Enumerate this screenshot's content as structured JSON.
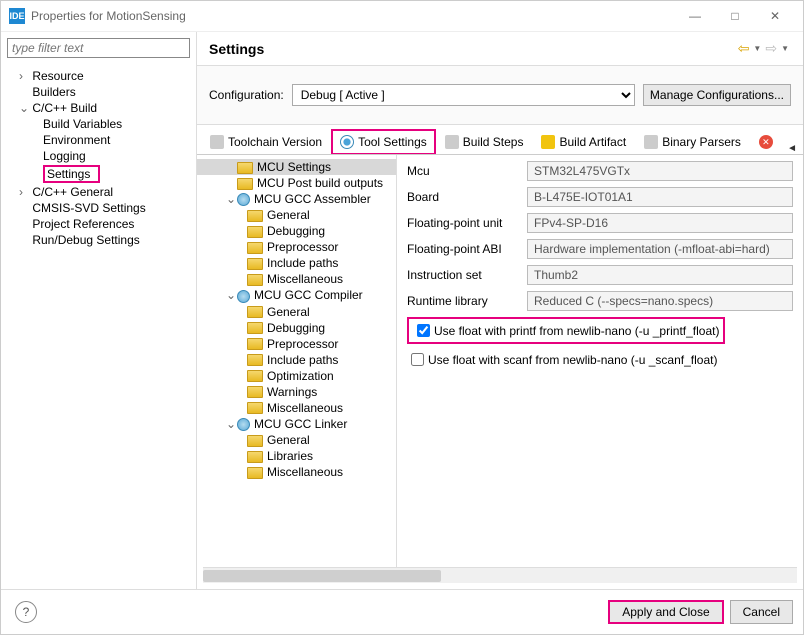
{
  "window": {
    "title": "Properties for MotionSensing",
    "ide_badge": "IDE"
  },
  "filter": {
    "placeholder": "type filter text"
  },
  "nav": {
    "resource": "Resource",
    "builders": "Builders",
    "ccbuild": "C/C++ Build",
    "buildvars": "Build Variables",
    "environment": "Environment",
    "logging": "Logging",
    "settings": "Settings",
    "ccgeneral": "C/C++ General",
    "cmsis": "CMSIS-SVD Settings",
    "projref": "Project References",
    "rundebug": "Run/Debug Settings"
  },
  "header": {
    "title": "Settings"
  },
  "config": {
    "label": "Configuration:",
    "value": "Debug  [ Active ]",
    "manage": "Manage Configurations..."
  },
  "tabs": {
    "toolchain": "Toolchain Version",
    "toolsettings": "Tool Settings",
    "buildsteps": "Build Steps",
    "buildartifact": "Build Artifact",
    "binaryparsers": "Binary Parsers"
  },
  "tooltree": {
    "mcusettings": "MCU Settings",
    "mcupost": "MCU Post build outputs",
    "assembler": "MCU GCC Assembler",
    "compiler": "MCU GCC Compiler",
    "linker": "MCU GCC Linker",
    "general": "General",
    "debugging": "Debugging",
    "preprocessor": "Preprocessor",
    "includepaths": "Include paths",
    "misc": "Miscellaneous",
    "optimization": "Optimization",
    "warnings": "Warnings",
    "libraries": "Libraries"
  },
  "form": {
    "labels": {
      "mcu": "Mcu",
      "board": "Board",
      "fpu": "Floating-point unit",
      "fpabi": "Floating-point ABI",
      "iset": "Instruction set",
      "rtlib": "Runtime library"
    },
    "values": {
      "mcu": "STM32L475VGTx",
      "board": "B-L475E-IOT01A1",
      "fpu": "FPv4-SP-D16",
      "fpabi": "Hardware implementation (-mfloat-abi=hard)",
      "iset": "Thumb2",
      "rtlib": "Reduced C (--specs=nano.specs)"
    },
    "check_printf": "Use float with printf from newlib-nano (-u _printf_float)",
    "check_scanf": "Use float with scanf from newlib-nano (-u _scanf_float)"
  },
  "footer": {
    "apply": "Apply and Close",
    "cancel": "Cancel"
  }
}
